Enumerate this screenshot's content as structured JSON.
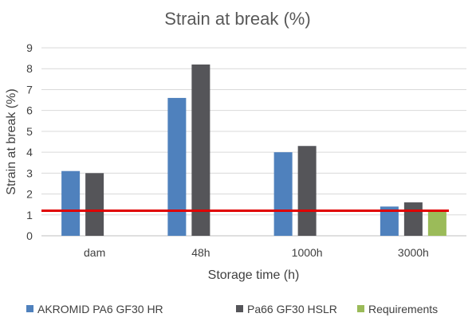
{
  "chart_data": {
    "type": "bar",
    "title": "Strain at break (%)",
    "xlabel": "Storage time (h)",
    "ylabel": "Strain at break (%)",
    "categories": [
      "dam",
      "48h",
      "1000h",
      "3000h"
    ],
    "ylim": [
      0,
      9
    ],
    "yticks": [
      0,
      1,
      2,
      3,
      4,
      5,
      6,
      7,
      8,
      9
    ],
    "grid": true,
    "legend_position": "bottom",
    "series": [
      {
        "name": "AKROMID PA6 GF30 HR",
        "values": [
          3.1,
          6.6,
          4.0,
          1.4
        ],
        "color": "#4f81bd"
      },
      {
        "name": "Pa66 GF30 HSLR",
        "values": [
          3.0,
          8.2,
          4.3,
          1.6
        ],
        "color": "#555559"
      },
      {
        "name": "Requirements",
        "values": [
          null,
          null,
          null,
          1.2
        ],
        "color": "#9bbb59"
      }
    ],
    "reference_line": {
      "value": 1.2,
      "color": "#e00000"
    }
  }
}
